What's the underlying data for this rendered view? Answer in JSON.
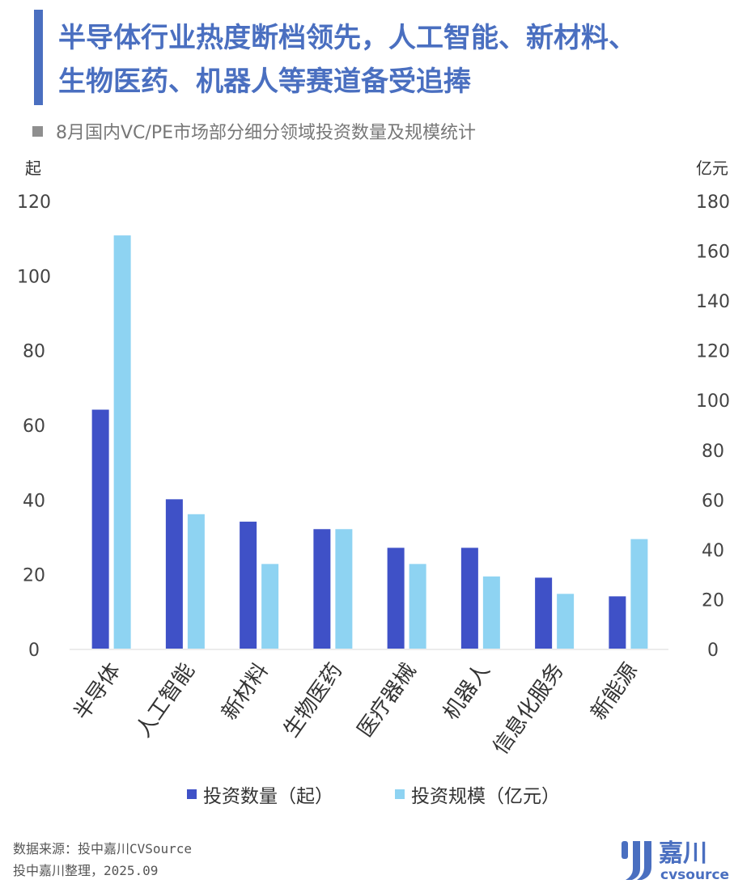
{
  "header": {
    "title_line1": "半导体行业热度断档领先，人工智能、新材料、",
    "title_line2": "生物医药、机器人等赛道备受追捧",
    "subtitle": "8月国内VC/PE市场部分细分领域投资数量及规模统计"
  },
  "footer": {
    "source": "数据来源：投中嘉川CVSource",
    "compiled": "投中嘉川整理，2025.09"
  },
  "logo": {
    "name": "嘉川",
    "sub": "cvsource",
    "color": "#4a6fc0"
  },
  "colors": {
    "series1": "#3f51c7",
    "series2": "#8ed3f2",
    "title": "#4a6fc0"
  },
  "chart_data": {
    "type": "bar",
    "categories": [
      "半导体",
      "人工智能",
      "新材料",
      "生物医药",
      "医疗器械",
      "机器人",
      "信息化服务",
      "新能源"
    ],
    "series": [
      {
        "name": "投资数量（起）",
        "axis": "left",
        "values": [
          64,
          40,
          34,
          32,
          27,
          27,
          19,
          14
        ]
      },
      {
        "name": "投资规模（亿元）",
        "axis": "right",
        "values": [
          166,
          54,
          34,
          48,
          34,
          29,
          22,
          44
        ]
      }
    ],
    "y_left": {
      "label": "起",
      "range": [
        0,
        120
      ],
      "ticks": [
        "0",
        "20",
        "40",
        "60",
        "80",
        "100",
        "120"
      ]
    },
    "y_right": {
      "label": "亿元",
      "range": [
        0,
        180
      ],
      "ticks": [
        "0",
        "20",
        "40",
        "60",
        "80",
        "100",
        "120",
        "140",
        "160",
        "180"
      ]
    },
    "grid": false,
    "legend": "bottom"
  }
}
